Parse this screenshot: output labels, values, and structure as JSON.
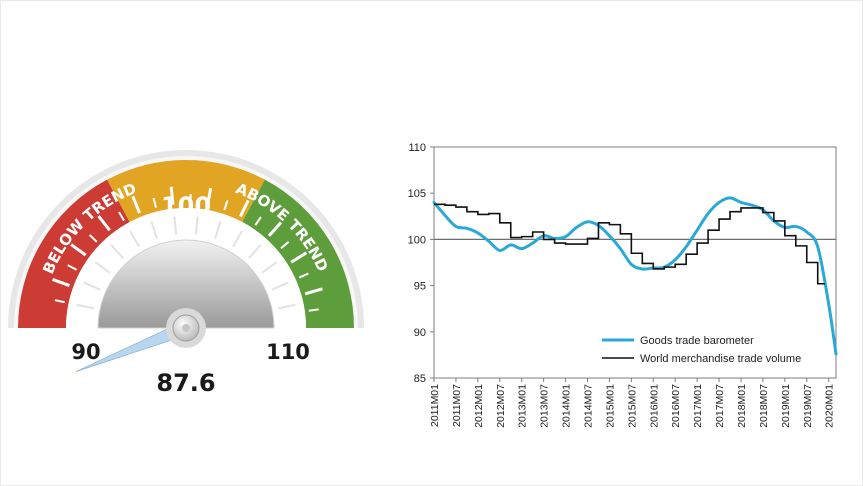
{
  "gauge": {
    "value": 87.6,
    "value_label": "87.6",
    "min_label": "90",
    "max_label": "110",
    "center_label": "100",
    "zone_below_label": "BELOW TREND",
    "zone_above_label": "ABOVE TREND",
    "colors": {
      "below": "#cc3b34",
      "center": "#e1a423",
      "above": "#5e9d3b",
      "needle": "#b7d7ee"
    }
  },
  "chart_data": {
    "type": "line",
    "ylim": [
      85,
      110
    ],
    "yticks": [
      "85",
      "90",
      "95",
      "100",
      "105",
      "110"
    ],
    "baseline": 100,
    "x_labels": [
      "2011M01",
      "2011M07",
      "2012M01",
      "2012M07",
      "2013M01",
      "2013M07",
      "2014M01",
      "2014M07",
      "2015M01",
      "2015M07",
      "2016M01",
      "2016M07",
      "2017M01",
      "2017M07",
      "2018M01",
      "2018M07",
      "2019M01",
      "2019M07",
      "2020M01"
    ],
    "series": [
      {
        "name": "Goods trade barometer",
        "color": "#2aa9d6",
        "points": [
          [
            "2011M01",
            104.0
          ],
          [
            "2011M04",
            102.6
          ],
          [
            "2011M07",
            101.4
          ],
          [
            "2011M10",
            101.2
          ],
          [
            "2012M01",
            100.7
          ],
          [
            "2012M04",
            99.8
          ],
          [
            "2012M07",
            98.8
          ],
          [
            "2012M10",
            99.4
          ],
          [
            "2013M01",
            99.0
          ],
          [
            "2013M04",
            99.6
          ],
          [
            "2013M07",
            100.4
          ],
          [
            "2013M10",
            100.1
          ],
          [
            "2014M01",
            100.3
          ],
          [
            "2014M04",
            101.3
          ],
          [
            "2014M07",
            101.9
          ],
          [
            "2014M10",
            101.5
          ],
          [
            "2015M01",
            100.4
          ],
          [
            "2015M04",
            99.0
          ],
          [
            "2015M07",
            97.3
          ],
          [
            "2015M10",
            96.8
          ],
          [
            "2016M01",
            96.9
          ],
          [
            "2016M04",
            97.0
          ],
          [
            "2016M07",
            97.8
          ],
          [
            "2016M10",
            99.2
          ],
          [
            "2017M01",
            101.0
          ],
          [
            "2017M04",
            102.8
          ],
          [
            "2017M07",
            104.0
          ],
          [
            "2017M10",
            104.5
          ],
          [
            "2018M01",
            104.0
          ],
          [
            "2018M04",
            103.7
          ],
          [
            "2018M07",
            103.2
          ],
          [
            "2018M10",
            102.0
          ],
          [
            "2019M01",
            101.3
          ],
          [
            "2019M04",
            101.4
          ],
          [
            "2019M07",
            100.8
          ],
          [
            "2019M10",
            99.2
          ],
          [
            "2020M01",
            93.0
          ],
          [
            "2020M03",
            87.6
          ]
        ]
      },
      {
        "name": "World merchandise trade volume",
        "color": "#111111",
        "points": [
          [
            "2011M01",
            103.8
          ],
          [
            "2011M04",
            103.7
          ],
          [
            "2011M07",
            103.5
          ],
          [
            "2011M10",
            103.0
          ],
          [
            "2012M01",
            102.7
          ],
          [
            "2012M04",
            102.8
          ],
          [
            "2012M07",
            101.8
          ],
          [
            "2012M10",
            100.2
          ],
          [
            "2013M01",
            100.3
          ],
          [
            "2013M04",
            100.8
          ],
          [
            "2013M07",
            100.0
          ],
          [
            "2013M10",
            99.6
          ],
          [
            "2014M01",
            99.5
          ],
          [
            "2014M04",
            99.5
          ],
          [
            "2014M07",
            100.1
          ],
          [
            "2014M10",
            101.8
          ],
          [
            "2015M01",
            101.6
          ],
          [
            "2015M04",
            100.6
          ],
          [
            "2015M07",
            98.5
          ],
          [
            "2015M10",
            97.4
          ],
          [
            "2016M01",
            96.8
          ],
          [
            "2016M04",
            97.0
          ],
          [
            "2016M07",
            97.3
          ],
          [
            "2016M10",
            98.4
          ],
          [
            "2017M01",
            99.6
          ],
          [
            "2017M04",
            101.0
          ],
          [
            "2017M07",
            102.2
          ],
          [
            "2017M10",
            103.0
          ],
          [
            "2018M01",
            103.4
          ],
          [
            "2018M04",
            103.4
          ],
          [
            "2018M07",
            102.9
          ],
          [
            "2018M10",
            102.0
          ],
          [
            "2019M01",
            100.4
          ],
          [
            "2019M04",
            99.3
          ],
          [
            "2019M07",
            97.5
          ],
          [
            "2019M10",
            95.2
          ],
          [
            "2019M12",
            95.2
          ]
        ]
      }
    ]
  }
}
